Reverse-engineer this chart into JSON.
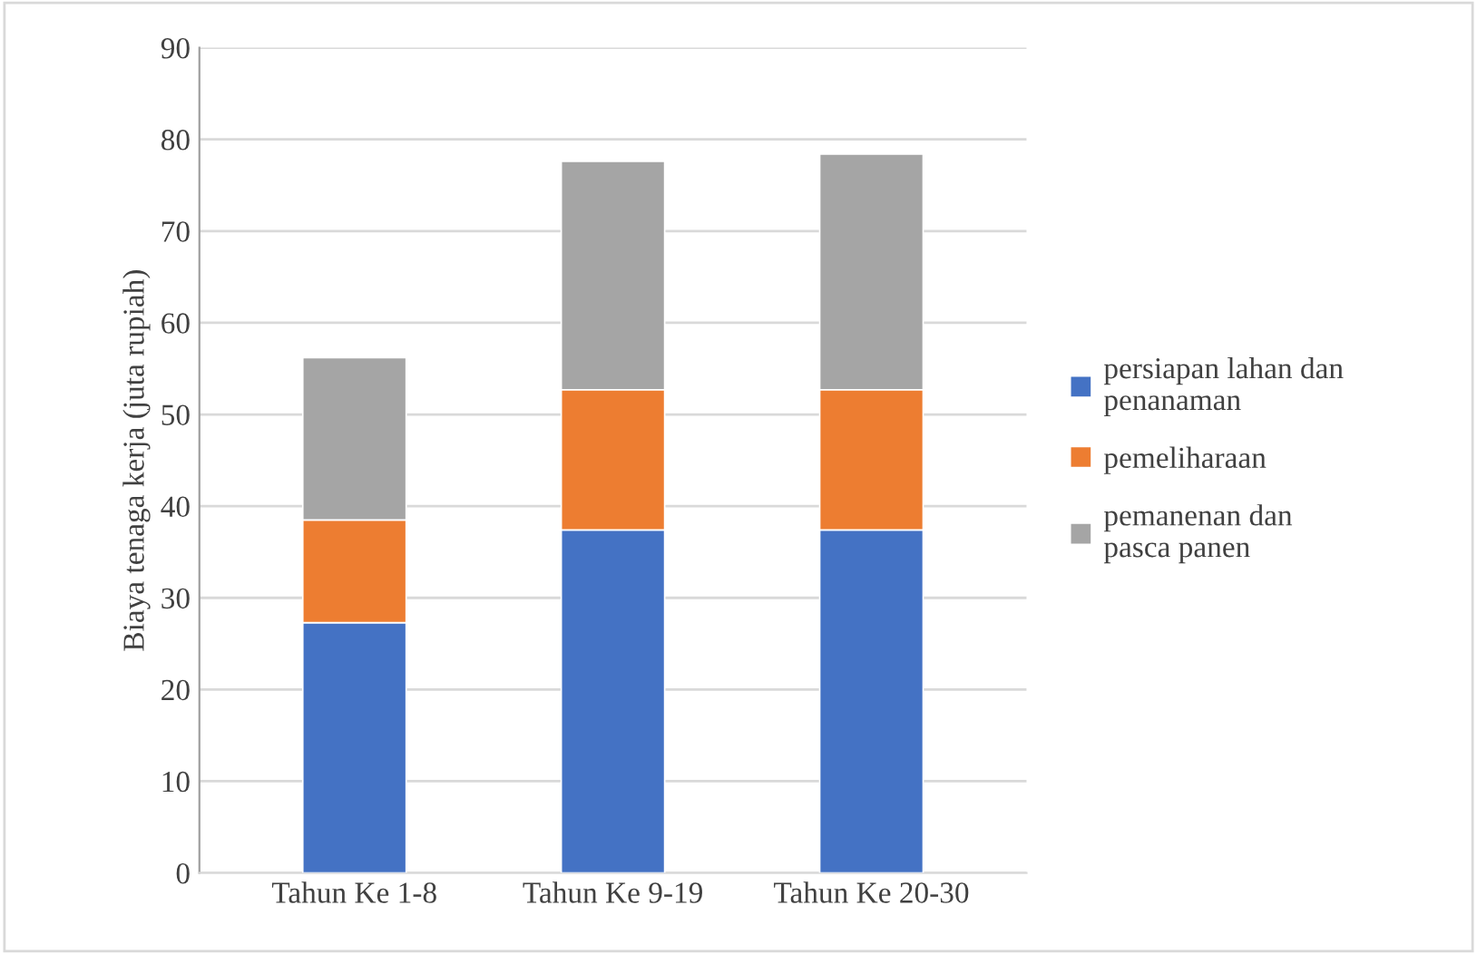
{
  "chart_data": {
    "type": "bar",
    "stacked": true,
    "ylabel": "Biaya tenaga kerja (juta rupiah)",
    "categories": [
      "Tahun Ke 1-8",
      "Tahun Ke 9-19",
      "Tahun Ke 20-30"
    ],
    "series": [
      {
        "name": "persiapan lahan dan\npenanaman",
        "color": "#4472c4",
        "values": [
          27.3,
          37.4,
          37.4
        ]
      },
      {
        "name": "pemeliharaan",
        "color": "#ed7d31",
        "values": [
          11.2,
          15.3,
          15.3
        ]
      },
      {
        "name": "pemanenan dan\npasca panen",
        "color": "#a5a5a5",
        "values": [
          17.7,
          24.9,
          25.7
        ]
      }
    ],
    "ylim": [
      0,
      90
    ],
    "yticks": [
      0,
      10,
      20,
      30,
      40,
      50,
      60,
      70,
      80,
      90
    ],
    "grid": "y",
    "legend": "right"
  }
}
